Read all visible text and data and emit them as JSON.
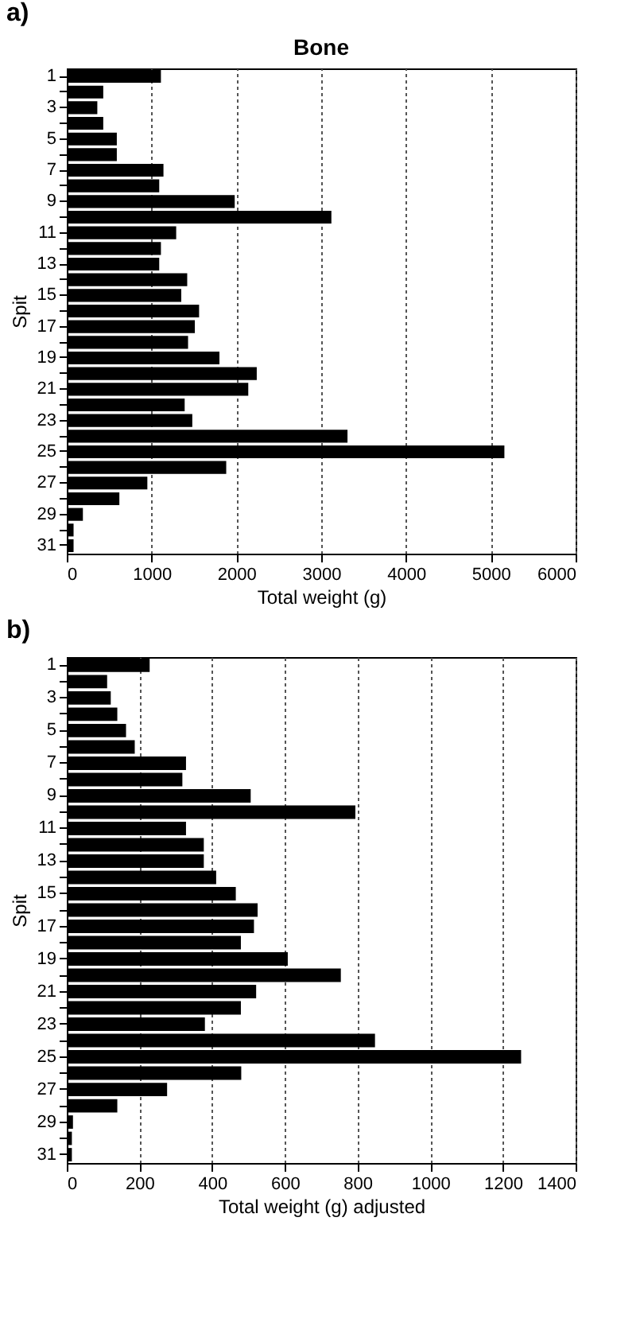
{
  "chart_data": [
    {
      "type": "bar",
      "orientation": "horizontal",
      "title": "Bone",
      "xlabel": "Total weight (g)",
      "ylabel": "Spit",
      "annotations": [
        "a)"
      ],
      "color": "#000000",
      "grid": "x",
      "categories": [
        "1",
        null,
        "3",
        null,
        "5",
        null,
        "7",
        null,
        "9",
        null,
        "11",
        null,
        "13",
        null,
        "15",
        null,
        "17",
        null,
        "19",
        null,
        "21",
        null,
        "23",
        null,
        "25",
        null,
        "27",
        null,
        "29",
        null,
        "31"
      ],
      "values": [
        1110,
        430,
        360,
        430,
        590,
        590,
        1140,
        1090,
        1980,
        3120,
        1290,
        1110,
        1090,
        1420,
        1350,
        1560,
        1510,
        1430,
        1800,
        2240,
        2140,
        1390,
        1480,
        3310,
        5160,
        1880,
        950,
        620,
        190,
        80,
        80
      ],
      "xlim": [
        0,
        6000
      ],
      "xticks": [
        0,
        1000,
        2000,
        3000,
        4000,
        5000,
        6000
      ]
    },
    {
      "type": "bar",
      "orientation": "horizontal",
      "xlabel": "Total weight (g) adjusted",
      "ylabel": "Spit",
      "annotations": [
        "b)"
      ],
      "color": "#000000",
      "grid": "x",
      "categories": [
        "1",
        null,
        "3",
        null,
        "5",
        null,
        "7",
        null,
        "9",
        null,
        "11",
        null,
        "13",
        null,
        "15",
        null,
        "17",
        null,
        "19",
        null,
        "21",
        null,
        "23",
        null,
        "25",
        null,
        "27",
        null,
        "29",
        null,
        "31"
      ],
      "values": [
        228,
        111,
        121,
        139,
        163,
        187,
        328,
        318,
        506,
        794,
        328,
        377,
        377,
        411,
        465,
        525,
        515,
        479,
        608,
        754,
        521,
        479,
        380,
        848,
        1250,
        480,
        276,
        139,
        17,
        14,
        14
      ],
      "xlim": [
        0,
        1400
      ],
      "xticks": [
        0,
        200,
        400,
        600,
        800,
        1000,
        1200,
        1400
      ]
    }
  ]
}
